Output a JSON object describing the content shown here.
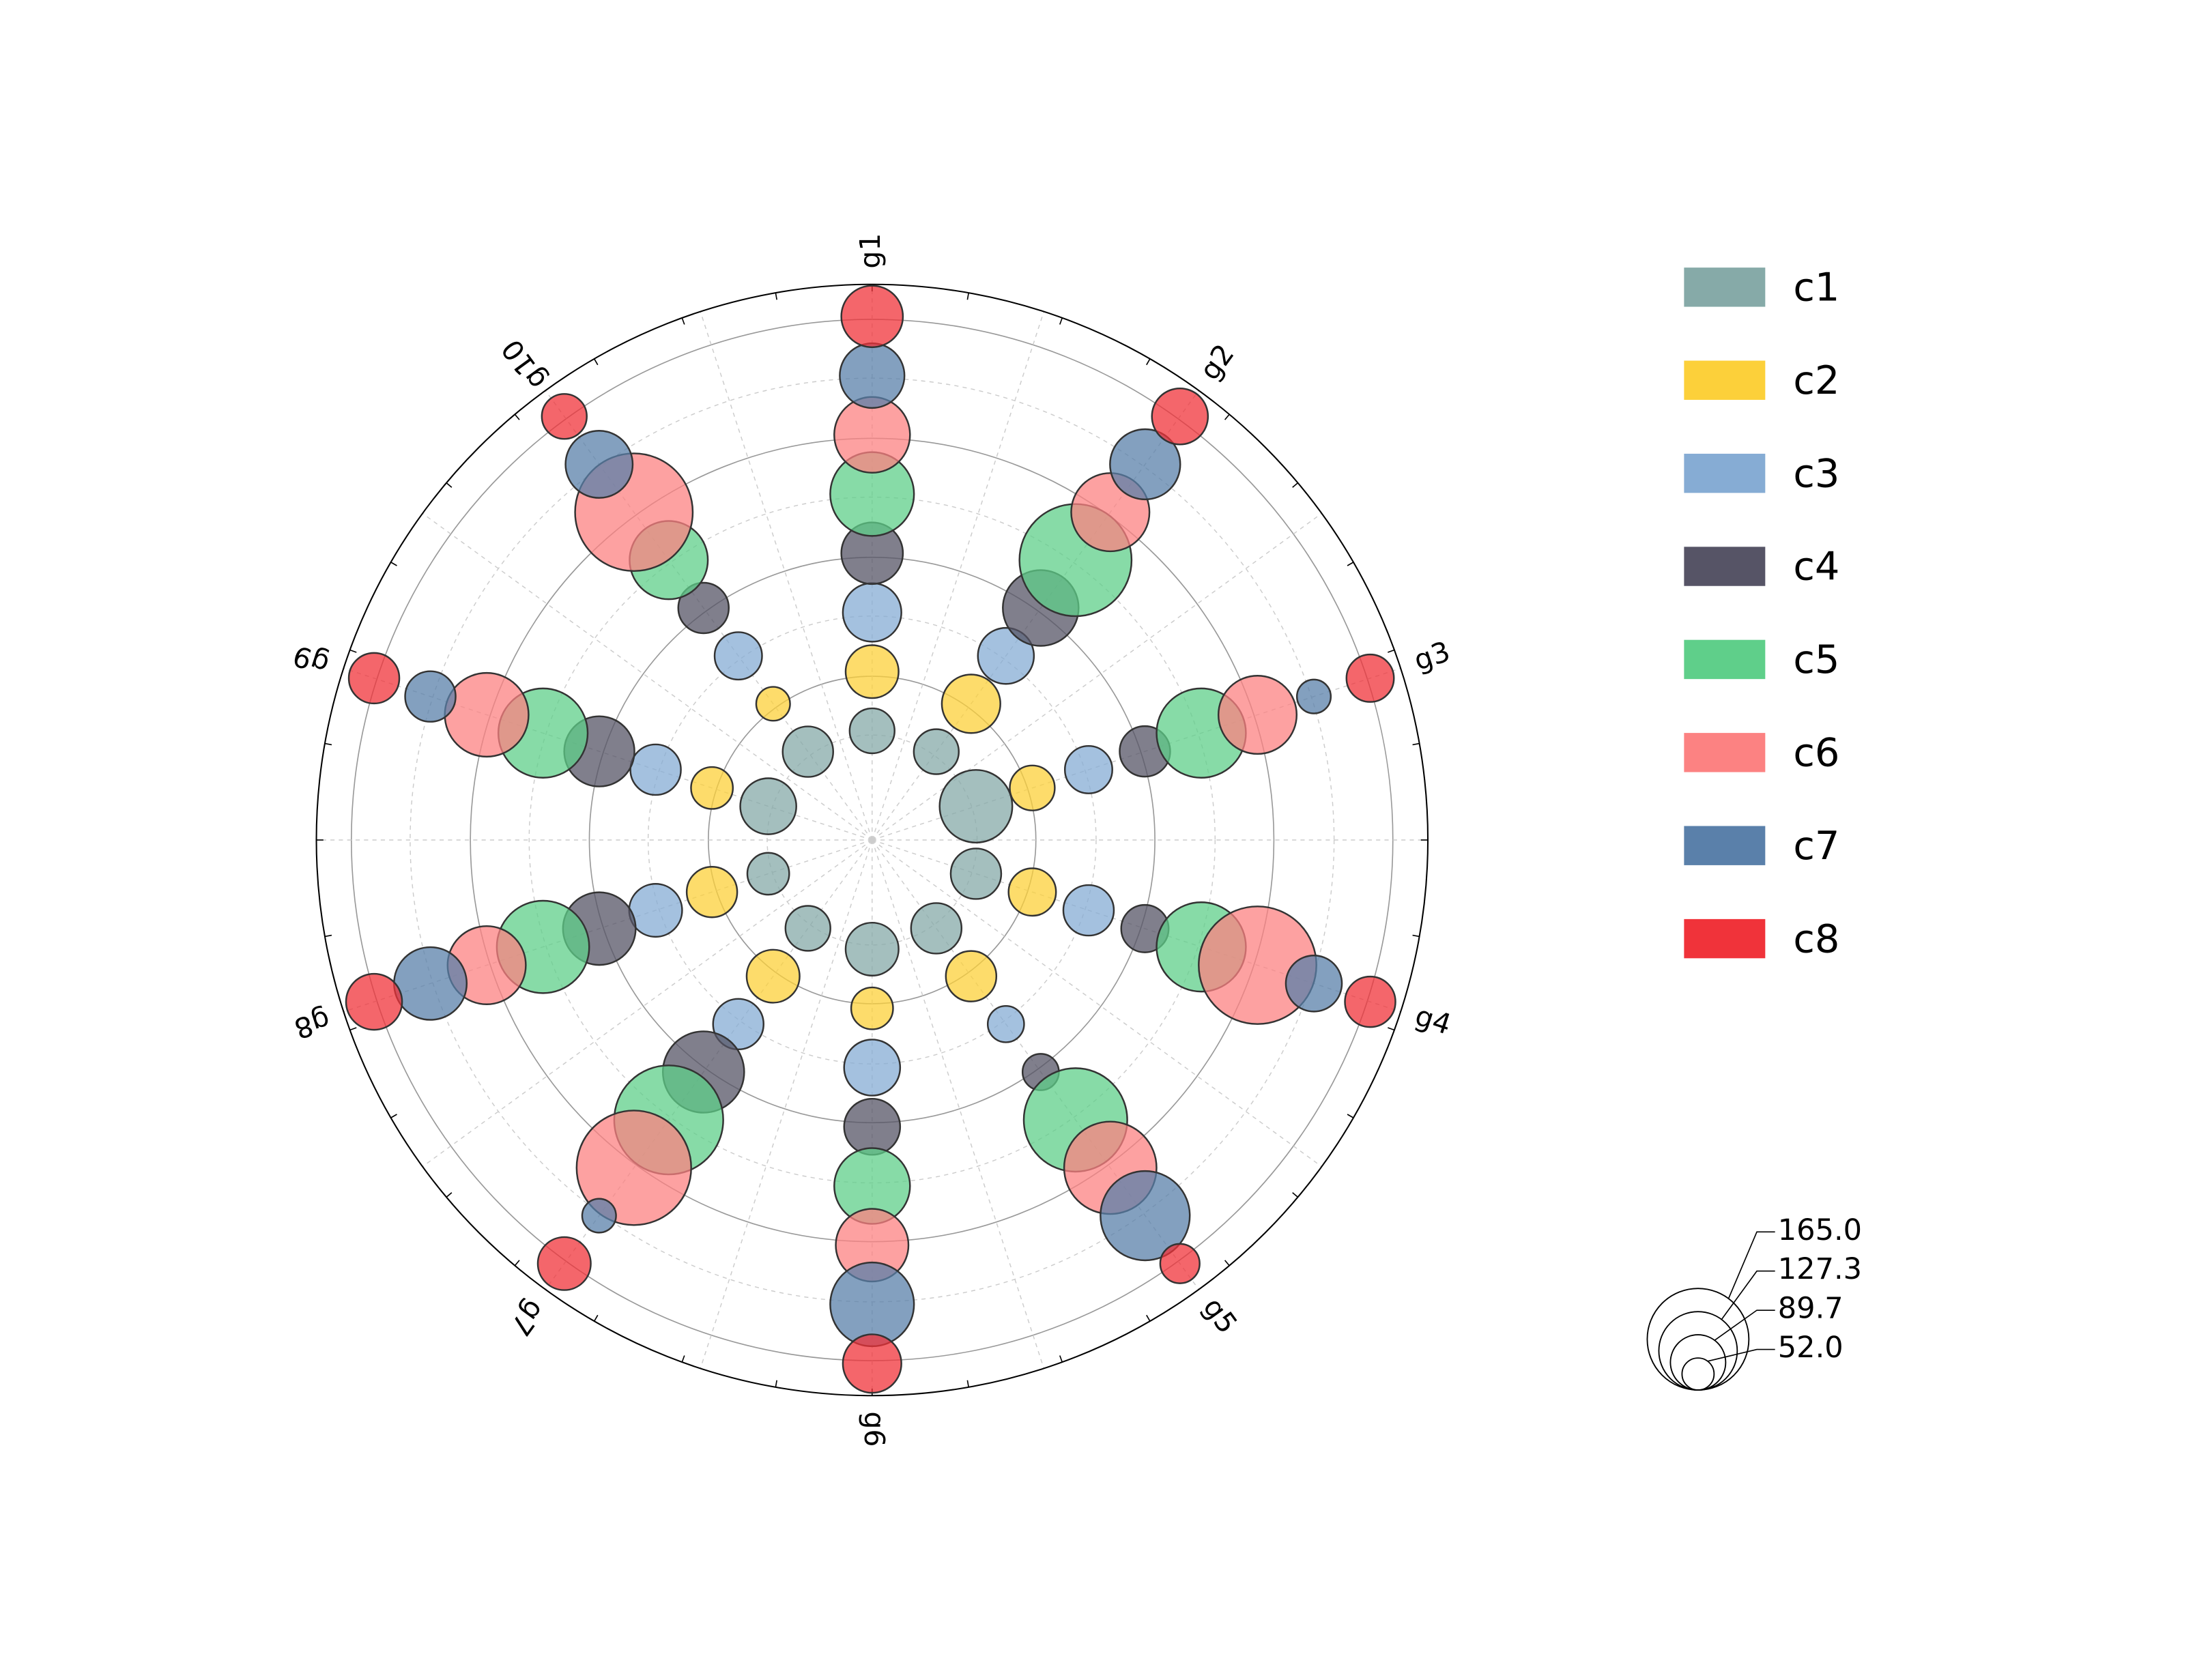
{
  "chart_data": {
    "type": "polar_bubble",
    "categories": [
      "g1",
      "g2",
      "g3",
      "g4",
      "g5",
      "g6",
      "g7",
      "g8",
      "g9",
      "g10"
    ],
    "series": [
      {
        "name": "c1",
        "color": "#86aaa8",
        "values": [
          73,
          73,
          118,
          82,
          82,
          86,
          73,
          68,
          91,
          82
        ]
      },
      {
        "name": "c2",
        "color": "#fcd03a",
        "values": [
          86,
          95,
          73,
          77,
          82,
          68,
          86,
          82,
          68,
          55
        ]
      },
      {
        "name": "c3",
        "color": "#86acd4",
        "values": [
          95,
          91,
          77,
          82,
          59,
          91,
          82,
          86,
          82,
          77
        ]
      },
      {
        "name": "c4",
        "color": "#565466",
        "values": [
          100,
          123,
          82,
          77,
          59,
          91,
          132,
          118,
          114,
          82
        ]
      },
      {
        "name": "c5",
        "color": "#5fcf8a",
        "values": [
          136,
          182,
          145,
          145,
          168,
          123,
          177,
          150,
          145,
          127
        ]
      },
      {
        "name": "c6",
        "color": "#fc8282",
        "values": [
          123,
          127,
          127,
          191,
          150,
          118,
          186,
          127,
          136,
          191
        ]
      },
      {
        "name": "c7",
        "color": "#5a80aa",
        "values": [
          105,
          114,
          55,
          91,
          145,
          136,
          55,
          118,
          82,
          109
        ]
      },
      {
        "name": "c8",
        "color": "#f0333a",
        "values": [
          100,
          91,
          77,
          82,
          64,
          95,
          86,
          91,
          82,
          73
        ]
      }
    ],
    "size_legend": [
      {
        "value": 165.0,
        "label": "165.0"
      },
      {
        "value": 127.3,
        "label": "127.3"
      },
      {
        "value": 89.7,
        "label": "89.7"
      },
      {
        "value": 52.0,
        "label": "52.0"
      }
    ]
  }
}
